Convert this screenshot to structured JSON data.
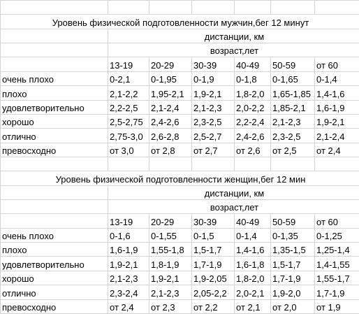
{
  "men": {
    "title": "Уровень физической подготовленности мужчин,бег 12 минут",
    "distance_label": "дистанции, км",
    "age_label": "возраст,лет",
    "ages": [
      "13-19",
      "20-29",
      "30-39",
      "40-49",
      "50-59",
      "от 60"
    ],
    "rows": [
      {
        "level": "очень плохо",
        "values": [
          "0-2,1",
          "0-1,95",
          "0-1,9",
          "0-1,8",
          "0-1,65",
          "0-1,4"
        ]
      },
      {
        "level": "плохо",
        "values": [
          "2,1-2,2",
          "1,95-2,1",
          "1,9-2,1",
          "1,8-2,0",
          "1,65-1,85",
          "1,4-1,6"
        ]
      },
      {
        "level": "удовлетворительно",
        "values": [
          "2,2-2,5",
          "2,1-2,4",
          "2,1-2,3",
          "2,0-2,2",
          "1,85-2,1",
          "1,6-1,9"
        ]
      },
      {
        "level": "хорошо",
        "values": [
          "2,5-2,75",
          "2,4-2,6",
          "2,3-2,5",
          "2,2-2,4",
          "2,1-2,3",
          "1,9-2,1"
        ]
      },
      {
        "level": "отлично",
        "values": [
          "2,75-3,0",
          "2,6-2,8",
          "2,5-2,7",
          "2,4-2,6",
          "2,3-2,5",
          "2,1-2,4"
        ]
      },
      {
        "level": "превосходно",
        "values": [
          "от 3,0",
          "от 2,8",
          "от 2,7",
          "от 2,6",
          "от 2,5",
          "от 2,4"
        ]
      }
    ]
  },
  "women": {
    "title": "Уровень физической подготовленности женщин,бег 12 мин",
    "distance_label": "дистанции, км",
    "age_label": "возраст,лет",
    "ages": [
      "13-19",
      "20-29",
      "30-39",
      "40-49",
      "50-59",
      "от 60"
    ],
    "rows": [
      {
        "level": "очень плохо",
        "values": [
          "0-1,6",
          "0-1,55",
          "0-1,5",
          "0-1,4",
          "0-1,35",
          "0-1,25"
        ]
      },
      {
        "level": "плохо",
        "values": [
          "1,6-1,9",
          "1,55-1,8",
          "1,5-1,7",
          "1,4-1,6",
          "1,35-1,5",
          "1,25-1,4"
        ]
      },
      {
        "level": "удовлетворительно",
        "values": [
          "1,9-2,1",
          "1,8-1,9",
          "1,7-1,9",
          "1,6-1,8",
          "1,5-1,7",
          "1,4-1,55"
        ]
      },
      {
        "level": "хорошо",
        "values": [
          "2,1-2,3",
          "1,9-2,1",
          "1,9-2,05",
          "1,8-2,0",
          "1,7-1,9",
          "1,55-1,7"
        ]
      },
      {
        "level": "отлично",
        "values": [
          "2,3-2,4",
          "2,1-2,3",
          "2,05-2,2",
          "2,0-2,1",
          "1,9-2,0",
          "1,7-1,9"
        ]
      },
      {
        "level": "превосходно",
        "values": [
          "от 2,4",
          "от 2,3",
          "от 2,2",
          "от 2,1",
          "от 2,0",
          "от 1,9"
        ]
      }
    ]
  }
}
